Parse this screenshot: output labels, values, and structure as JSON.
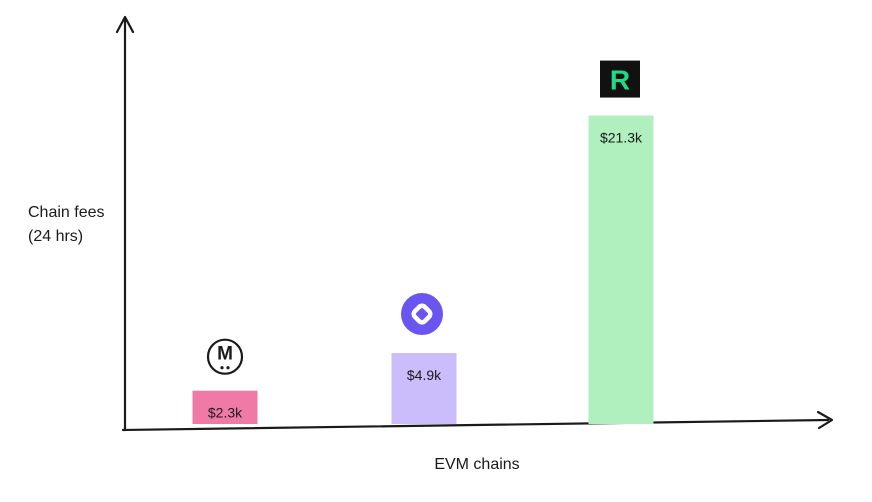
{
  "chart_data": {
    "type": "bar",
    "categories": [
      "Chain M",
      "Chain O",
      "Chain R"
    ],
    "values": [
      2.3,
      4.9,
      21.3
    ],
    "value_labels": [
      "$2.3k",
      "$4.9k",
      "$21.3k"
    ],
    "xlabel": "EVM chains",
    "ylabel_lines": [
      "Chain fees",
      "(24 hrs)"
    ],
    "ylim": [
      0,
      25
    ],
    "grid": false,
    "legend": "none",
    "bar_colors": [
      "#f07aa6",
      "#cbbdfb",
      "#b0f0be"
    ],
    "icons": [
      "m-logo-icon",
      "ring-logo-icon",
      "r-logo-icon"
    ],
    "icon_letters": [
      "M",
      "",
      "R"
    ],
    "icon_colors": [
      "#1a1a1a",
      "#6b55f0",
      "#1edb85"
    ]
  }
}
